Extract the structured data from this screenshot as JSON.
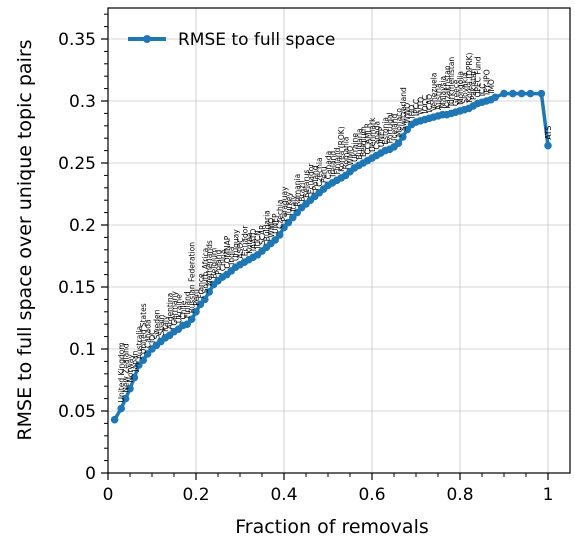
{
  "chart_data": {
    "type": "line",
    "xlabel": "Fraction of removals",
    "ylabel": "RMSE to full space over unique topic pairs",
    "xlim": [
      0,
      1.05
    ],
    "ylim": [
      0,
      0.375
    ],
    "grid": true,
    "legend_position": "top-left",
    "x_ticks": [
      {
        "value": 0,
        "label": "0"
      },
      {
        "value": 0.2,
        "label": "0.2"
      },
      {
        "value": 0.4,
        "label": "0.4"
      },
      {
        "value": 0.6,
        "label": "0.6"
      },
      {
        "value": 0.8,
        "label": "0.8"
      },
      {
        "value": 1,
        "label": "1"
      }
    ],
    "y_ticks": [
      {
        "value": 0,
        "label": "0"
      },
      {
        "value": 0.05,
        "label": "0.05"
      },
      {
        "value": 0.1,
        "label": "0.1"
      },
      {
        "value": 0.15,
        "label": "0.15"
      },
      {
        "value": 0.2,
        "label": "0.2"
      },
      {
        "value": 0.25,
        "label": "0.25"
      },
      {
        "value": 0.3,
        "label": "0.3"
      },
      {
        "value": 0.35,
        "label": "0.35"
      }
    ],
    "colors": {
      "series": "#1f77b4",
      "grid": "#b0b0b0",
      "axis": "#000000"
    },
    "series": [
      {
        "name": "RMSE to full space",
        "points": [
          {
            "x": 0.015,
            "y": 0.043,
            "label": ""
          },
          {
            "x": 0.03,
            "y": 0.052,
            "label": "United Kingdom"
          },
          {
            "x": 0.04,
            "y": 0.06,
            "label": "New Zealand"
          },
          {
            "x": 0.05,
            "y": 0.068,
            "label": "Norway"
          },
          {
            "x": 0.06,
            "y": 0.077,
            "label": "Japan"
          },
          {
            "x": 0.07,
            "y": 0.087,
            "label": "Australia"
          },
          {
            "x": 0.08,
            "y": 0.091,
            "label": "United States"
          },
          {
            "x": 0.09,
            "y": 0.096,
            "label": "Canada"
          },
          {
            "x": 0.1,
            "y": 0.1,
            "label": "IOC"
          },
          {
            "x": 0.11,
            "y": 0.103,
            "label": "Sweden"
          },
          {
            "x": 0.12,
            "y": 0.106,
            "label": "Spain"
          },
          {
            "x": 0.13,
            "y": 0.109,
            "label": "Italy"
          },
          {
            "x": 0.14,
            "y": 0.111,
            "label": "Argentina"
          },
          {
            "x": 0.15,
            "y": 0.114,
            "label": "Germany"
          },
          {
            "x": 0.16,
            "y": 0.116,
            "label": "Ukraine"
          },
          {
            "x": 0.17,
            "y": 0.119,
            "label": "Chile"
          },
          {
            "x": 0.18,
            "y": 0.12,
            "label": "Finland"
          },
          {
            "x": 0.19,
            "y": 0.124,
            "label": "Russian Federation"
          },
          {
            "x": 0.2,
            "y": 0.13,
            "label": "Peru"
          },
          {
            "x": 0.21,
            "y": 0.136,
            "label": "France"
          },
          {
            "x": 0.22,
            "y": 0.14,
            "label": "South Africa"
          },
          {
            "x": 0.23,
            "y": 0.146,
            "label": "Netherlands"
          },
          {
            "x": 0.24,
            "y": 0.152,
            "label": "Belgium"
          },
          {
            "x": 0.25,
            "y": 0.155,
            "label": "Poland"
          },
          {
            "x": 0.26,
            "y": 0.158,
            "label": "China"
          },
          {
            "x": 0.27,
            "y": 0.16,
            "label": "COMNAP"
          },
          {
            "x": 0.28,
            "y": 0.163,
            "label": "India"
          },
          {
            "x": 0.29,
            "y": 0.166,
            "label": "Uruguay"
          },
          {
            "x": 0.3,
            "y": 0.168,
            "label": "ASOC"
          },
          {
            "x": 0.31,
            "y": 0.17,
            "label": "Ecuador"
          },
          {
            "x": 0.32,
            "y": 0.172,
            "label": "Korea"
          },
          {
            "x": 0.33,
            "y": 0.174,
            "label": "IAATO"
          },
          {
            "x": 0.34,
            "y": 0.176,
            "label": "IUCN"
          },
          {
            "x": 0.35,
            "y": 0.179,
            "label": "SCAR"
          },
          {
            "x": 0.36,
            "y": 0.182,
            "label": "Bulgaria"
          },
          {
            "x": 0.37,
            "y": 0.185,
            "label": "WMO"
          },
          {
            "x": 0.38,
            "y": 0.188,
            "label": "UNEP"
          },
          {
            "x": 0.39,
            "y": 0.192,
            "label": "Czechia"
          },
          {
            "x": 0.4,
            "y": 0.198,
            "label": "Paraguay"
          },
          {
            "x": 0.41,
            "y": 0.202,
            "label": "Turkey"
          },
          {
            "x": 0.42,
            "y": 0.206,
            "label": "Italy"
          },
          {
            "x": 0.43,
            "y": 0.21,
            "label": "Romania"
          },
          {
            "x": 0.44,
            "y": 0.214,
            "label": "Brazil"
          },
          {
            "x": 0.45,
            "y": 0.217,
            "label": "Belarus"
          },
          {
            "x": 0.46,
            "y": 0.22,
            "label": "Ecuador"
          },
          {
            "x": 0.47,
            "y": 0.223,
            "label": "Poland"
          },
          {
            "x": 0.48,
            "y": 0.226,
            "label": "Czechia"
          },
          {
            "x": 0.49,
            "y": 0.229,
            "label": "Peru"
          },
          {
            "x": 0.5,
            "y": 0.232,
            "label": "Canada"
          },
          {
            "x": 0.51,
            "y": 0.234,
            "label": "Ireland"
          },
          {
            "x": 0.52,
            "y": 0.236,
            "label": "Finland"
          },
          {
            "x": 0.53,
            "y": 0.238,
            "label": "Korea (ROK)"
          },
          {
            "x": 0.54,
            "y": 0.24,
            "label": "Romania"
          },
          {
            "x": 0.55,
            "y": 0.243,
            "label": "WMO"
          },
          {
            "x": 0.56,
            "y": 0.246,
            "label": "Ukraine"
          },
          {
            "x": 0.57,
            "y": 0.248,
            "label": "Bulgaria"
          },
          {
            "x": 0.58,
            "y": 0.25,
            "label": "Belgium"
          },
          {
            "x": 0.59,
            "y": 0.252,
            "label": "CCAMLR"
          },
          {
            "x": 0.6,
            "y": 0.254,
            "label": "Denmark"
          },
          {
            "x": 0.61,
            "y": 0.256,
            "label": "Canada"
          },
          {
            "x": 0.62,
            "y": 0.258,
            "label": "UNEP"
          },
          {
            "x": 0.63,
            "y": 0.26,
            "label": "Estonia"
          },
          {
            "x": 0.64,
            "y": 0.261,
            "label": "Portugal"
          },
          {
            "x": 0.65,
            "y": 0.263,
            "label": "Iceland"
          },
          {
            "x": 0.66,
            "y": 0.266,
            "label": "Monaco"
          },
          {
            "x": 0.67,
            "y": 0.271,
            "label": "Switzerland"
          },
          {
            "x": 0.68,
            "y": 0.277,
            "label": "WWO"
          },
          {
            "x": 0.69,
            "y": 0.281,
            "label": "IHO"
          },
          {
            "x": 0.7,
            "y": 0.283,
            "label": "IPCC"
          },
          {
            "x": 0.71,
            "y": 0.284,
            "label": "WTO"
          },
          {
            "x": 0.72,
            "y": 0.285,
            "label": "IOCC"
          },
          {
            "x": 0.73,
            "y": 0.286,
            "label": "ICAO"
          },
          {
            "x": 0.74,
            "y": 0.287,
            "label": "Venezuela"
          },
          {
            "x": 0.75,
            "y": 0.288,
            "label": "Austria"
          },
          {
            "x": 0.76,
            "y": 0.289,
            "label": "Malaysia"
          },
          {
            "x": 0.77,
            "y": 0.289,
            "label": "Kazakhstan"
          },
          {
            "x": 0.78,
            "y": 0.29,
            "label": "Turkmenistan"
          },
          {
            "x": 0.79,
            "y": 0.291,
            "label": "Greece"
          },
          {
            "x": 0.8,
            "y": 0.292,
            "label": "Mongolia"
          },
          {
            "x": 0.81,
            "y": 0.293,
            "label": "Slovakia"
          },
          {
            "x": 0.82,
            "y": 0.294,
            "label": "Korea (DPRK)"
          },
          {
            "x": 0.83,
            "y": 0.296,
            "label": "Pakistan"
          },
          {
            "x": 0.84,
            "y": 0.298,
            "label": "OPEC Fund"
          },
          {
            "x": 0.85,
            "y": 0.299,
            "label": "ICC"
          },
          {
            "x": 0.86,
            "y": 0.3,
            "label": "IPY-IPO"
          },
          {
            "x": 0.87,
            "y": 0.301,
            "label": "IMO"
          },
          {
            "x": 0.88,
            "y": 0.303,
            "label": ""
          },
          {
            "x": 0.9,
            "y": 0.306,
            "label": ""
          },
          {
            "x": 0.92,
            "y": 0.306,
            "label": ""
          },
          {
            "x": 0.94,
            "y": 0.306,
            "label": ""
          },
          {
            "x": 0.96,
            "y": 0.306,
            "label": ""
          },
          {
            "x": 0.985,
            "y": 0.306,
            "label": ""
          },
          {
            "x": 1.0,
            "y": 0.264,
            "label": "ATS"
          }
        ]
      }
    ]
  }
}
